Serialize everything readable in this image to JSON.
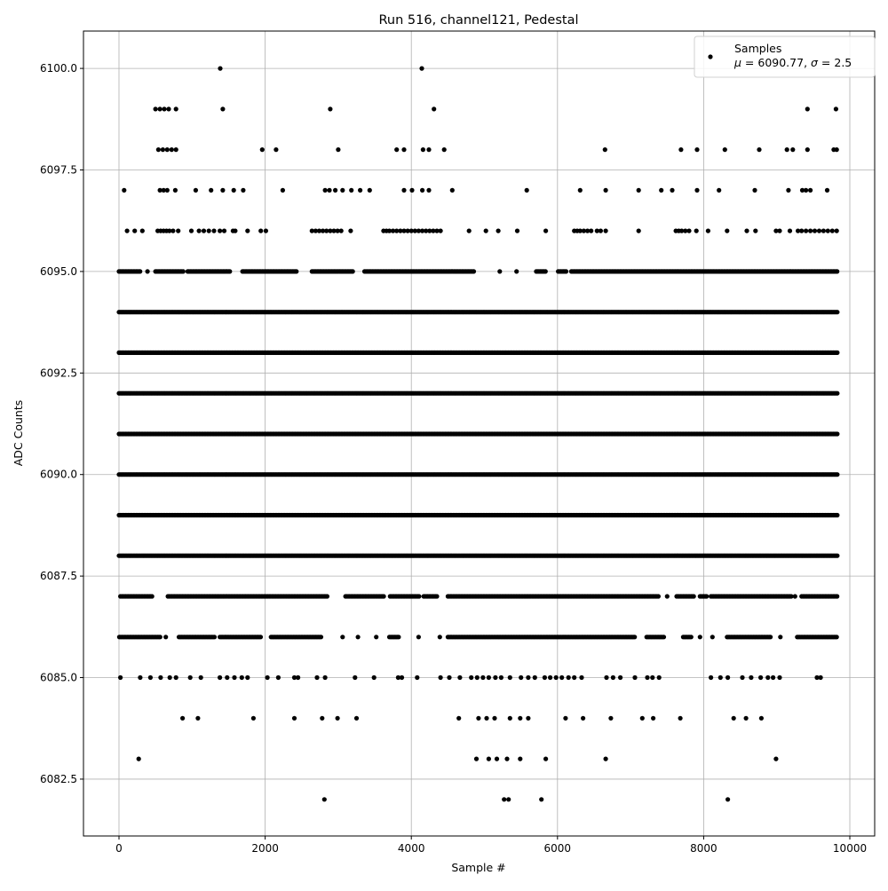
{
  "chart_data": {
    "type": "scatter",
    "title": "Run 516, channel121, Pedestal",
    "xlabel": "Sample #",
    "ylabel": "ADC Counts",
    "xlim": [
      -486,
      10340
    ],
    "ylim": [
      6081.1,
      6100.92
    ],
    "xticks": [
      0,
      2000,
      4000,
      6000,
      8000,
      10000
    ],
    "xtick_labels": [
      "0",
      "2000",
      "4000",
      "6000",
      "8000",
      "10000"
    ],
    "yticks": [
      6082.5,
      6085.0,
      6087.5,
      6090.0,
      6092.5,
      6095.0,
      6097.5,
      6100.0
    ],
    "ytick_labels": [
      "6082.5",
      "6085.0",
      "6087.5",
      "6090.0",
      "6092.5",
      "6095.0",
      "6097.5",
      "6100.0"
    ],
    "grid": true,
    "marker_color": "#000000",
    "grid_color": "#b0b0b0",
    "legend": {
      "placement": "top-right",
      "entries": [
        {
          "label": "Samples",
          "stats_prefix": "μ",
          "stats_mid": " = 6090.77, ",
          "stats_sigma": "σ",
          "stats_end": " = 2.5"
        }
      ]
    },
    "series": [
      {
        "name": "Samples",
        "dense_levels": [
          {
            "y": 6094,
            "ranges": [
              [
                0,
                9830
              ]
            ]
          },
          {
            "y": 6093,
            "ranges": [
              [
                0,
                9830
              ]
            ]
          },
          {
            "y": 6092,
            "ranges": [
              [
                0,
                9830
              ]
            ]
          },
          {
            "y": 6091,
            "ranges": [
              [
                0,
                9830
              ]
            ]
          },
          {
            "y": 6090,
            "ranges": [
              [
                0,
                9830
              ]
            ]
          },
          {
            "y": 6089,
            "ranges": [
              [
                0,
                9830
              ]
            ]
          },
          {
            "y": 6088,
            "ranges": [
              [
                0,
                9830
              ]
            ]
          },
          {
            "y": 6095,
            "ranges": [
              [
                0,
                290
              ],
              [
                390,
                390
              ],
              [
                500,
                885
              ],
              [
                940,
                1520
              ],
              [
                1690,
                2430
              ],
              [
                2640,
                3200
              ],
              [
                3360,
                4860
              ],
              [
                5210,
                5210
              ],
              [
                5440,
                5440
              ],
              [
                5710,
                5850
              ],
              [
                6010,
                6130
              ],
              [
                6190,
                9830
              ]
            ]
          },
          {
            "y": 6087,
            "ranges": [
              [
                20,
                460
              ],
              [
                670,
                2850
              ],
              [
                3100,
                3630
              ],
              [
                3710,
                4120
              ],
              [
                4170,
                4360
              ],
              [
                4500,
                7390
              ],
              [
                7500,
                7500
              ],
              [
                7630,
                7880
              ],
              [
                7950,
                8050
              ],
              [
                8100,
                9210
              ],
              [
                9250,
                9250
              ],
              [
                9340,
                9830
              ]
            ]
          },
          {
            "y": 6086,
            "ranges": [
              [
                5,
                570
              ],
              [
                640,
                640
              ],
              [
                820,
                1310
              ],
              [
                1380,
                1940
              ],
              [
                2080,
                2780
              ],
              [
                3060,
                3060
              ],
              [
                3270,
                3270
              ],
              [
                3520,
                3520
              ],
              [
                3700,
                3840
              ],
              [
                4100,
                4100
              ],
              [
                4390,
                4390
              ],
              [
                4500,
                7070
              ],
              [
                7220,
                7460
              ],
              [
                7720,
                7840
              ],
              [
                7950,
                7950
              ],
              [
                8120,
                8120
              ],
              [
                8320,
                8930
              ],
              [
                9050,
                9050
              ],
              [
                9280,
                9830
              ]
            ]
          }
        ],
        "sparse_levels": [
          {
            "y": 6100,
            "x": [
              1385,
              4143
            ]
          },
          {
            "y": 6099,
            "x": [
              500,
              560,
              620,
              680,
              780,
              1420,
              2890,
              4310,
              9420,
              9810
            ]
          },
          {
            "y": 6098,
            "x": [
              540,
              600,
              660,
              720,
              780,
              1960,
              2150,
              3000,
              3800,
              3900,
              4160,
              4240,
              4450,
              6650,
              7690,
              7910,
              8290,
              8760,
              9140,
              9220,
              9420,
              9780,
              9820
            ]
          },
          {
            "y": 6097,
            "x": [
              70,
              560,
              610,
              660,
              770,
              1050,
              1260,
              1420,
              1570,
              1700,
              2240,
              2820,
              2880,
              2960,
              3060,
              3180,
              3300,
              3430,
              3900,
              4010,
              4150,
              4240,
              4560,
              5580,
              6310,
              6660,
              7110,
              7420,
              7570,
              7910,
              8210,
              8700,
              9160,
              9350,
              9400,
              9460,
              9690
            ]
          },
          {
            "y": 6096,
            "x": [
              110,
              215,
              320,
              530,
              570,
              610,
              650,
              690,
              740,
              810,
              990,
              1095,
              1160,
              1230,
              1300,
              1380,
              1440,
              1560,
              1590,
              1760,
              1940,
              2010,
              2640,
              2690,
              2740,
              2790,
              2840,
              2890,
              2940,
              2990,
              3040,
              3170,
              3620,
              3660,
              3700,
              3750,
              3800,
              3850,
              3900,
              3950,
              4000,
              4050,
              4100,
              4150,
              4200,
              4250,
              4300,
              4350,
              4400,
              4790,
              5020,
              5190,
              5450,
              5840,
              6230,
              6270,
              6310,
              6360,
              6410,
              6460,
              6540,
              6590,
              6660,
              7110,
              7620,
              7660,
              7700,
              7750,
              7800,
              7900,
              8060,
              8320,
              8590,
              8710,
              8990,
              9040,
              9180,
              9290,
              9340,
              9400,
              9460,
              9520,
              9580,
              9640,
              9700,
              9760,
              9820
            ]
          },
          {
            "y": 6085,
            "x": [
              20,
              290,
              430,
              570,
              695,
              780,
              975,
              1120,
              1380,
              1480,
              1580,
              1680,
              1760,
              2030,
              2180,
              2400,
              2450,
              2710,
              2820,
              3230,
              3490,
              3820,
              3870,
              4080,
              4400,
              4520,
              4665,
              4820,
              4900,
              4980,
              5060,
              5150,
              5230,
              5350,
              5500,
              5600,
              5690,
              5825,
              5900,
              5980,
              6060,
              6150,
              6230,
              6330,
              6670,
              6760,
              6860,
              7060,
              7230,
              7300,
              7390,
              8100,
              8230,
              8330,
              8530,
              8650,
              8780,
              8880,
              8950,
              9040,
              9550,
              9600
            ]
          },
          {
            "y": 6084,
            "x": [
              870,
              1080,
              1840,
              2400,
              2780,
              2990,
              3250,
              4650,
              4920,
              5030,
              5140,
              5350,
              5490,
              5600,
              6110,
              6350,
              6730,
              7160,
              7310,
              7680,
              8410,
              8580,
              8790
            ]
          },
          {
            "y": 6083,
            "x": [
              270,
              4890,
              5060,
              5170,
              5310,
              5490,
              5840,
              6660,
              8990
            ]
          },
          {
            "y": 6082,
            "x": [
              2810,
              5270,
              5330,
              5780,
              8330
            ]
          }
        ]
      }
    ]
  }
}
